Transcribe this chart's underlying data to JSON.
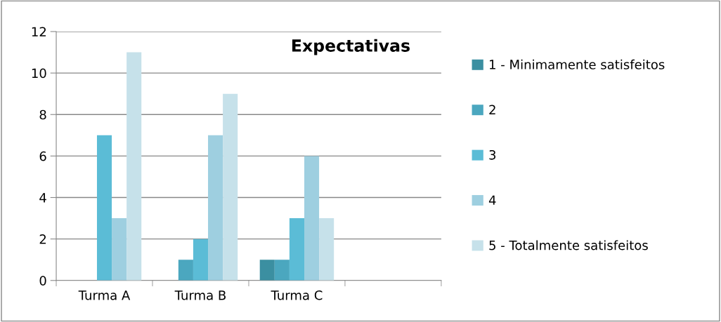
{
  "chart_data": {
    "type": "bar",
    "title": "Expectativas",
    "categories": [
      "Turma A",
      "Turma B",
      "Turma C",
      null
    ],
    "series": [
      {
        "name": "1 - Minimamente satisfeitos",
        "color": "#3b8fa1",
        "values": [
          0,
          0,
          1,
          null
        ]
      },
      {
        "name": "2",
        "color": "#4ba7bf",
        "values": [
          0,
          1,
          1,
          null
        ]
      },
      {
        "name": "3",
        "color": "#5bbcd6",
        "values": [
          7,
          2,
          3,
          null
        ]
      },
      {
        "name": "4",
        "color": "#9ecfe0",
        "values": [
          3,
          7,
          6,
          null
        ]
      },
      {
        "name": "5 - Totalmente satisfeitos",
        "color": "#c6e1ea",
        "values": [
          11,
          9,
          3,
          null
        ]
      }
    ],
    "ylim": [
      0,
      12
    ],
    "yticks": [
      0,
      2,
      4,
      6,
      8,
      10,
      12
    ],
    "grid": "y",
    "legend": "right"
  }
}
